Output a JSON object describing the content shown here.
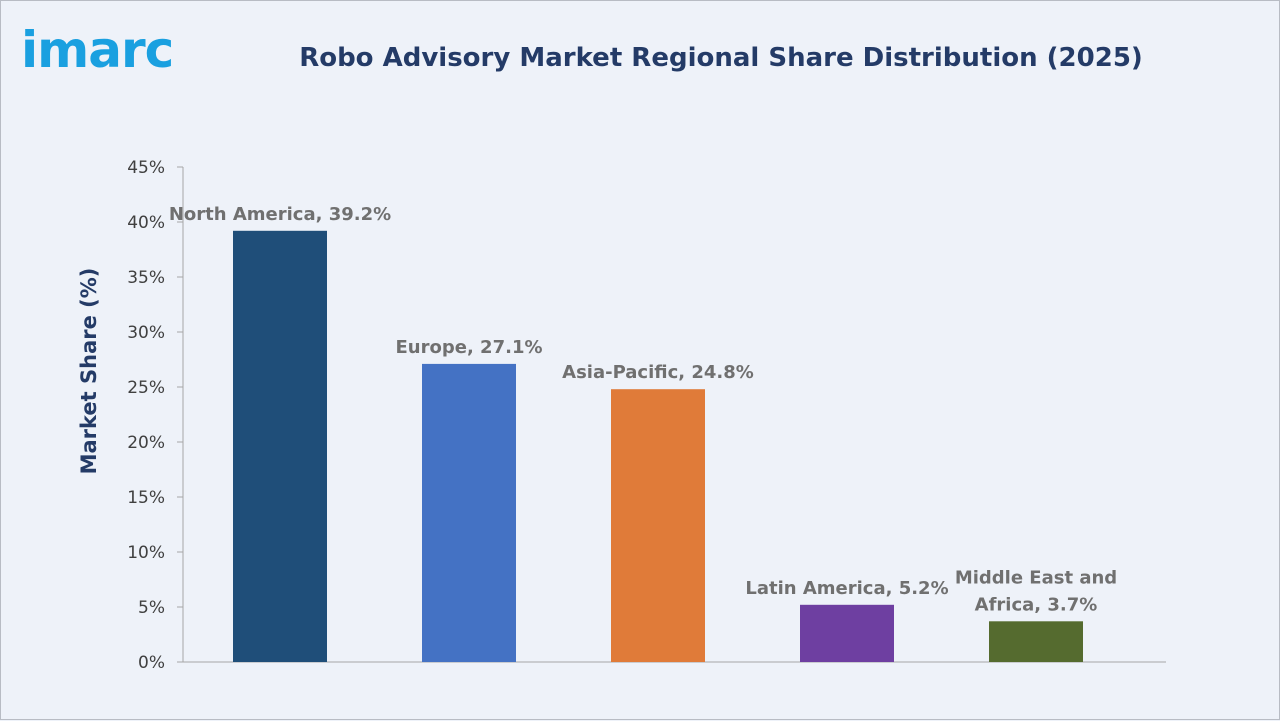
{
  "brand": {
    "logo_text": "imarc",
    "logo_color": "#1aa0e0"
  },
  "chart_data": {
    "type": "bar",
    "title": "Robo Advisory Market Regional Share Distribution (2025)",
    "xlabel": "",
    "ylabel": "Market Share (%)",
    "categories": [
      "North America",
      "Europe",
      "Asia-Pacific",
      "Latin America",
      "Middle East and Africa"
    ],
    "values": [
      39.2,
      27.1,
      24.8,
      5.2,
      3.7
    ],
    "data_labels": [
      [
        "North America, 39.2%"
      ],
      [
        "Europe, 27.1%"
      ],
      [
        "Asia-Pacific, 24.8%"
      ],
      [
        "Latin America, 5.2%"
      ],
      [
        "Middle East and",
        "Africa, 3.7%"
      ]
    ],
    "colors": [
      "#1f4e79",
      "#4472c4",
      "#e07b39",
      "#6e3fa1",
      "#556b2f"
    ],
    "ylim": [
      0,
      45
    ],
    "yticks": [
      0,
      5,
      10,
      15,
      20,
      25,
      30,
      35,
      40,
      45
    ],
    "ytick_labels": [
      "0%",
      "5%",
      "10%",
      "15%",
      "20%",
      "25%",
      "30%",
      "35%",
      "40%",
      "45%"
    ],
    "grid": false,
    "legend": "none"
  }
}
